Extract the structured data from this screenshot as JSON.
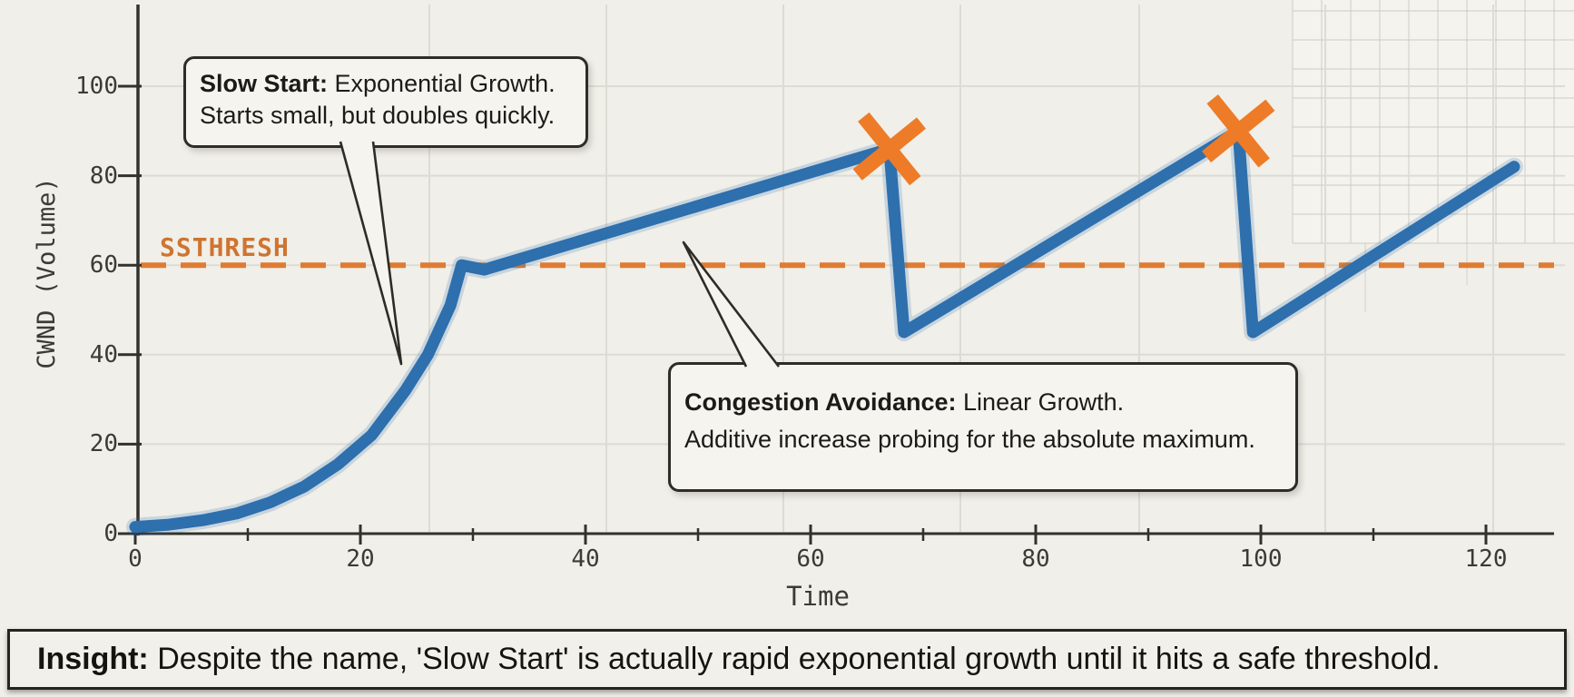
{
  "page": {
    "background": "#f0efe9"
  },
  "colors": {
    "line_blue": "#2e6fad",
    "loss_x_orange": "#ee7b27",
    "ssthresh_orange": "#de7c31",
    "ssthresh_text": "#cf7430",
    "grid": "#dcdbd4",
    "fine_grid": "#c7c6be",
    "ink": "#2d2c28",
    "box_bg": "#f5f4ef"
  },
  "y_axis": {
    "label": "CWND (Volume)",
    "ticks": [
      "0",
      "20",
      "40",
      "60",
      "80",
      "100"
    ]
  },
  "x_axis": {
    "label": "Time",
    "ticks": [
      "0",
      "20",
      "40",
      "60",
      "80",
      "100",
      "120"
    ]
  },
  "ssthresh_label": "SSTHRESH",
  "callouts": {
    "slow_start": {
      "title": "Slow Start:",
      "line1_rest": " Exponential Growth.",
      "line2": "Starts small, but doubles quickly."
    },
    "congestion_avoidance": {
      "title": "Congestion Avoidance:",
      "line1_rest": " Linear Growth.",
      "line2": "Additive increase probing for the absolute maximum."
    }
  },
  "insight": {
    "label": "Insight:",
    "text": " Despite the name, 'Slow Start' is actually rapid exponential growth until it hits a safe threshold."
  },
  "chart_data": {
    "type": "line",
    "title": "",
    "xlabel": "Time",
    "ylabel": "CWND (Volume)",
    "xlim": [
      0,
      124
    ],
    "ylim": [
      0,
      117
    ],
    "x_ticks": [
      0,
      20,
      40,
      60,
      80,
      100,
      120
    ],
    "x_minor_ticks": [
      10,
      30,
      50,
      70,
      90,
      110
    ],
    "y_ticks": [
      0,
      20,
      40,
      60,
      80,
      100
    ],
    "grid": "on",
    "ssthresh_value": 60,
    "series": [
      {
        "name": "CWND",
        "color": "#2e6fad",
        "points": [
          [
            0,
            1.5
          ],
          [
            3,
            2
          ],
          [
            6,
            3
          ],
          [
            9,
            4.5
          ],
          [
            12,
            7
          ],
          [
            15,
            10.5
          ],
          [
            18,
            15.5
          ],
          [
            21,
            22
          ],
          [
            24,
            32
          ],
          [
            26,
            40
          ],
          [
            28,
            51
          ],
          [
            29,
            60
          ],
          [
            31,
            59
          ],
          [
            67,
            86
          ],
          [
            68.3,
            45
          ],
          [
            98,
            90
          ],
          [
            99.3,
            45
          ],
          [
            122.5,
            82
          ]
        ]
      }
    ],
    "loss_events": [
      [
        67,
        86
      ],
      [
        98,
        90
      ]
    ],
    "annotations": [
      "Slow Start: Exponential Growth. Starts small, but doubles quickly.",
      "Congestion Avoidance: Linear Growth. Additive increase probing for the absolute maximum."
    ],
    "legend": "off"
  }
}
